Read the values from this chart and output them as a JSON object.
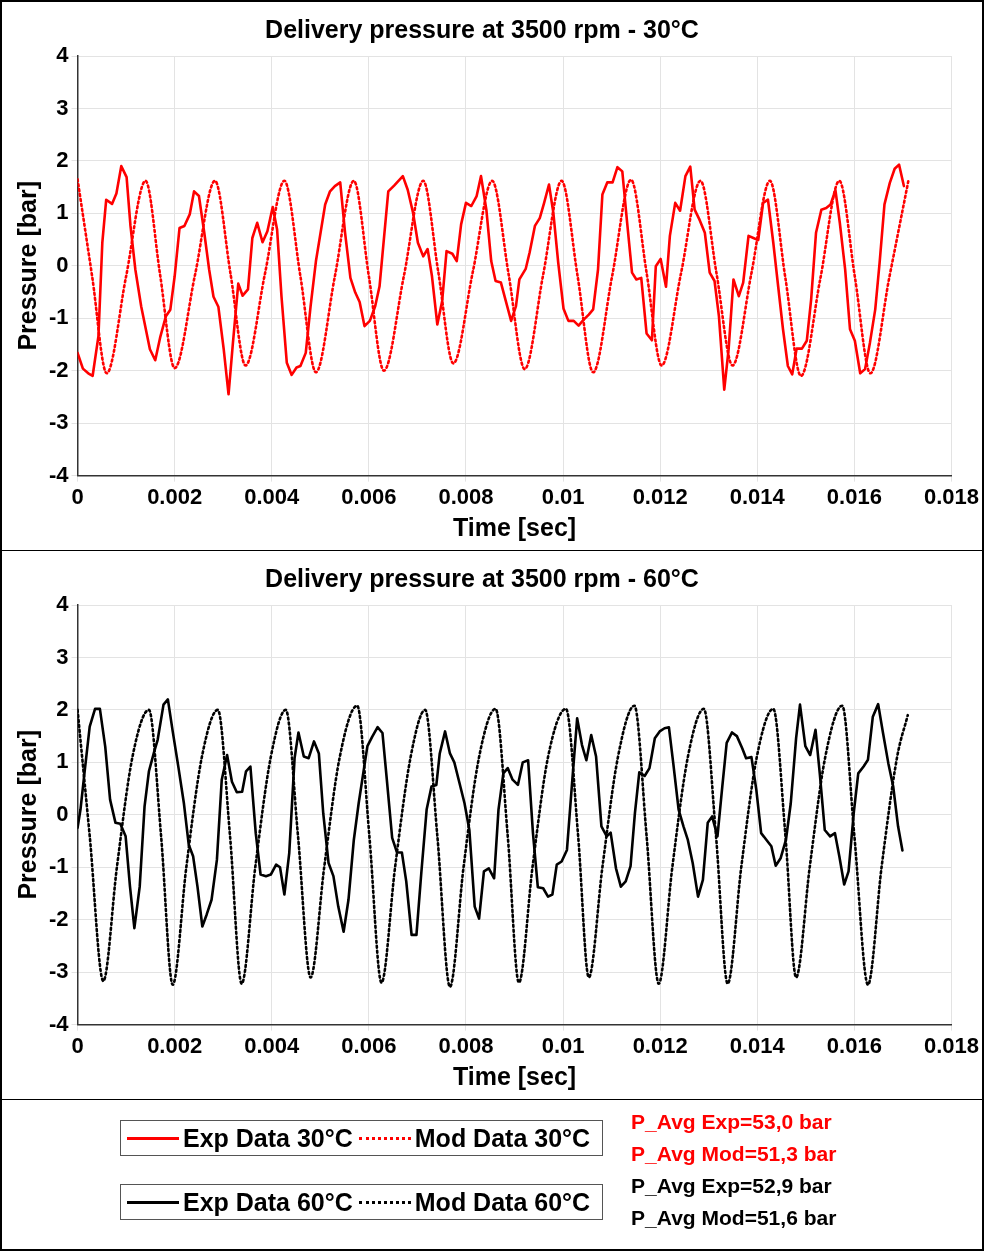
{
  "chart_data": [
    {
      "type": "line",
      "title": "Delivery pressure at 3500 rpm - 30°C",
      "xlabel": "Time [sec]",
      "ylabel": "Pressure [bar]",
      "xlim": [
        0,
        0.018
      ],
      "xticks": [
        0,
        0.002,
        0.004,
        0.006,
        0.008,
        0.01,
        0.012,
        0.014,
        0.016,
        0.018
      ],
      "ylim": [
        -4,
        4
      ],
      "yticks": [
        -4,
        -3,
        -2,
        -1,
        0,
        1,
        2,
        3,
        4
      ],
      "grid": true,
      "legend": "bottom",
      "marker": "none",
      "annotations": [
        "P_Avg Exp=53,0 bar",
        "P_Avg Mod=51,3 bar"
      ],
      "series": [
        {
          "name": "Exp Data 30°C",
          "color": "#ff0000",
          "line_style": "solid",
          "x": [
            0,
            0.00011,
            0.00022,
            0.00031,
            0.00043,
            0.00051,
            0.00059,
            0.00071,
            0.0008,
            0.0009,
            0.00101,
            0.00109,
            0.00119,
            0.00131,
            0.00149,
            0.0016,
            0.0017,
            0.00182,
            0.00191,
            0.002,
            0.0021,
            0.0022,
            0.00231,
            0.0024,
            0.0025,
            0.00261,
            0.00271,
            0.0028,
            0.0029,
            0.00301,
            0.00311,
            0.0032,
            0.00331,
            0.0034,
            0.00351,
            0.0036,
            0.0037,
            0.00381,
            0.00391,
            0.00402,
            0.00411,
            0.0042,
            0.00431,
            0.00441,
            0.00451,
            0.00459,
            0.0047,
            0.0048,
            0.00491,
            0.0051,
            0.0052,
            0.0053,
            0.00541,
            0.00551,
            0.00562,
            0.00572,
            0.00581,
            0.00591,
            0.00602,
            0.00613,
            0.00622,
            0.0064,
            0.00652,
            0.0067,
            0.0068,
            0.00691,
            0.00701,
            0.00712,
            0.00721,
            0.0073,
            0.00741,
            0.00751,
            0.0076,
            0.00772,
            0.00781,
            0.0079,
            0.008,
            0.00811,
            0.00822,
            0.00831,
            0.00842,
            0.00852,
            0.00861,
            0.00872,
            0.00882,
            0.00893,
            0.00903,
            0.0091,
            0.00923,
            0.00931,
            0.00942,
            0.00952,
            0.00961,
            0.00971,
            0.0098,
            0.0099,
            0.01001,
            0.01011,
            0.01022,
            0.01032,
            0.01042,
            0.01053,
            0.01062,
            0.01072,
            0.01081,
            0.01091,
            0.01102,
            0.01112,
            0.01122,
            0.01132,
            0.01142,
            0.01151,
            0.01161,
            0.01172,
            0.01183,
            0.01191,
            0.01201,
            0.01212,
            0.0122,
            0.01231,
            0.01241,
            0.01252,
            0.01262,
            0.01271,
            0.01281,
            0.01292,
            0.01302,
            0.01312,
            0.01321,
            0.01332,
            0.01341,
            0.01351,
            0.01362,
            0.01371,
            0.01382,
            0.01392,
            0.01402,
            0.01412,
            0.01422,
            0.01433,
            0.01443,
            0.01453,
            0.01463,
            0.01472,
            0.01481,
            0.01492,
            0.01502,
            0.01511,
            0.01521,
            0.01532,
            0.01542,
            0.01551,
            0.01561,
            0.0157,
            0.01581,
            0.01591,
            0.01601,
            0.01612,
            0.01622,
            0.01632,
            0.01643,
            0.01652,
            0.01662,
            0.01673,
            0.01683,
            0.01692,
            0.01702
          ],
          "values": [
            -1.66,
            -1.96,
            -2.05,
            -2.1,
            -1.34,
            0.44,
            1.26,
            1.18,
            1.38,
            1.9,
            1.69,
            0.76,
            -0.07,
            -0.77,
            -1.59,
            -1.8,
            -1.37,
            -0.96,
            -0.84,
            -0.2,
            0.72,
            0.76,
            0.98,
            1.42,
            1.33,
            0.63,
            -0.07,
            -0.59,
            -0.78,
            -1.59,
            -2.45,
            -1.47,
            -0.34,
            -0.57,
            -0.45,
            0.53,
            0.82,
            0.45,
            0.66,
            1.12,
            0.69,
            -0.58,
            -1.85,
            -2.08,
            -1.94,
            -1.91,
            -1.66,
            -0.77,
            0.09,
            1.17,
            1.42,
            1.52,
            1.59,
            0.63,
            -0.23,
            -0.51,
            -0.69,
            -1.15,
            -1.05,
            -0.77,
            -0.39,
            1.42,
            1.53,
            1.71,
            1.45,
            1.01,
            0.44,
            0.18,
            0.32,
            -0.2,
            -1.12,
            -0.67,
            0.28,
            0.23,
            0.09,
            0.79,
            1.2,
            1.14,
            1.33,
            1.71,
            1.07,
            0.09,
            -0.29,
            -0.32,
            -0.67,
            -1.05,
            -0.77,
            -0.26,
            -0.06,
            0.25,
            0.76,
            0.91,
            1.2,
            1.55,
            1.01,
            0.06,
            -0.82,
            -1.05,
            -1.05,
            -1.14,
            -1.03,
            -0.93,
            -0.83,
            -0.07,
            1.36,
            1.59,
            1.59,
            1.88,
            1.8,
            0.82,
            -0.13,
            -0.26,
            -0.23,
            -1.29,
            -1.42,
            -0.01,
            0.13,
            -0.4,
            0.57,
            1.2,
            1.05,
            1.71,
            1.89,
            1.07,
            0.88,
            0.63,
            -0.13,
            -0.29,
            -0.96,
            -2.36,
            -1.59,
            -0.26,
            -0.58,
            -0.32,
            0.57,
            0.53,
            0.49,
            1.2,
            1.26,
            0.44,
            -0.39,
            -1.21,
            -1.91,
            -2.07,
            -1.58,
            -1.58,
            -1.43,
            -0.64,
            0.63,
            1.07,
            1.1,
            1.17,
            1.44,
            0.82,
            -0.07,
            -1.21,
            -1.43,
            -2.05,
            -1.97,
            -1.47,
            -0.83,
            0.06,
            1.17,
            1.58,
            1.85,
            1.93,
            1.52
          ]
        },
        {
          "name": "Mod Data 30°C",
          "color": "#ff0000",
          "line_style": "dotted",
          "x": [
            0,
            0.0003,
            0.0006,
            0.001,
            0.0014,
            0.0017,
            0.002,
            0.00242,
            0.00283,
            0.00315,
            0.00346,
            0.00386,
            0.00426,
            0.00459,
            0.00491,
            0.0053,
            0.00569,
            0.006,
            0.00631,
            0.00672,
            0.00712,
            0.00743,
            0.00774,
            0.00814,
            0.00854,
            0.00888,
            0.00921,
            0.00959,
            0.00997,
            0.0103,
            0.01062,
            0.01101,
            0.0114,
            0.01172,
            0.01203,
            0.01243,
            0.01283,
            0.01316,
            0.01349,
            0.01388,
            0.01426,
            0.01458,
            0.0149,
            0.0153,
            0.01569,
            0.01601,
            0.01633,
            0.01672,
            0.01711
          ],
          "values": [
            1.65,
            -0.2,
            -2.05,
            -0.2,
            1.62,
            -0.17,
            -1.95,
            -0.17,
            1.62,
            -0.15,
            -1.9,
            -0.15,
            1.62,
            -0.2,
            -2.03,
            -0.2,
            1.62,
            -0.2,
            -2,
            -0.2,
            1.62,
            -0.12,
            -1.86,
            -0.12,
            1.62,
            -0.17,
            -1.97,
            -0.17,
            1.62,
            -0.2,
            -2.03,
            -0.2,
            1.64,
            -0.13,
            -1.9,
            -0.14,
            1.62,
            -0.14,
            -1.9,
            -0.14,
            1.62,
            -0.24,
            -2.1,
            -0.24,
            1.62,
            -0.21,
            -2.05,
            -0.22,
            1.61
          ]
        }
      ]
    },
    {
      "type": "line",
      "title": "Delivery pressure at 3500 rpm - 60°C",
      "xlabel": "Time [sec]",
      "ylabel": "Pressure [bar]",
      "xlim": [
        0,
        0.018
      ],
      "xticks": [
        0,
        0.002,
        0.004,
        0.006,
        0.008,
        0.01,
        0.012,
        0.014,
        0.016,
        0.018
      ],
      "ylim": [
        -4,
        4
      ],
      "yticks": [
        -4,
        -3,
        -2,
        -1,
        0,
        1,
        2,
        3,
        4
      ],
      "grid": true,
      "legend": "bottom",
      "marker": "none",
      "annotations": [
        "P_Avg Exp=52,9 bar",
        "P_Avg Mod=51,6 bar"
      ],
      "series": [
        {
          "name": "Exp Data 60°C",
          "color": "#000000",
          "line_style": "solid",
          "x": [
            0,
            6e-05,
            0.00015,
            0.00025,
            0.00036,
            0.00046,
            0.00057,
            0.00067,
            0.00078,
            0.00088,
            0.00099,
            0.00108,
            0.00117,
            0.00128,
            0.00138,
            0.00147,
            0.00158,
            0.00165,
            0.00177,
            0.00186,
            0.00196,
            0.00208,
            0.00219,
            0.00229,
            0.00238,
            0.00247,
            0.00257,
            0.00266,
            0.00276,
            0.00287,
            0.00297,
            0.00308,
            0.00318,
            0.00328,
            0.00339,
            0.00347,
            0.00356,
            0.00367,
            0.00377,
            0.00388,
            0.00398,
            0.00409,
            0.00417,
            0.00426,
            0.00436,
            0.00447,
            0.00455,
            0.00466,
            0.00476,
            0.00487,
            0.00497,
            0.00506,
            0.00517,
            0.00527,
            0.00537,
            0.00548,
            0.00558,
            0.00569,
            0.00579,
            0.00597,
            0.00607,
            0.00618,
            0.00628,
            0.00637,
            0.00648,
            0.00658,
            0.00668,
            0.00677,
            0.00688,
            0.00698,
            0.00708,
            0.00719,
            0.00729,
            0.00739,
            0.00746,
            0.00757,
            0.00767,
            0.00776,
            0.00786,
            0.00797,
            0.00807,
            0.00818,
            0.00827,
            0.00837,
            0.00847,
            0.00858,
            0.00867,
            0.00877,
            0.00886,
            0.00896,
            0.00907,
            0.00917,
            0.00928,
            0.00938,
            0.00948,
            0.00959,
            0.00969,
            0.00978,
            0.00987,
            0.00997,
            0.01008,
            0.01018,
            0.01029,
            0.01039,
            0.01048,
            0.01058,
            0.01068,
            0.01079,
            0.0109,
            0.01098,
            0.01109,
            0.01119,
            0.01129,
            0.01139,
            0.01148,
            0.01157,
            0.01168,
            0.01178,
            0.01189,
            0.01199,
            0.01209,
            0.01218,
            0.01227,
            0.01238,
            0.01248,
            0.01257,
            0.01267,
            0.01278,
            0.01288,
            0.01298,
            0.01307,
            0.01318,
            0.01328,
            0.01337,
            0.01348,
            0.01358,
            0.01369,
            0.01377,
            0.01388,
            0.01398,
            0.01408,
            0.01419,
            0.01429,
            0.01438,
            0.01448,
            0.01459,
            0.01469,
            0.0148,
            0.01488,
            0.01499,
            0.01509,
            0.0152,
            0.01529,
            0.01539,
            0.0155,
            0.0156,
            0.01569,
            0.01579,
            0.01588,
            0.01599,
            0.01608,
            0.01619,
            0.01628,
            0.01638,
            0.01649,
            0.01659,
            0.0167,
            0.0168,
            0.0169,
            0.01699
          ],
          "values": [
            -0.25,
            0.1,
            0.86,
            1.68,
            2.02,
            2.02,
            1.3,
            0.29,
            -0.15,
            -0.17,
            -0.41,
            -1.37,
            -2.16,
            -1.37,
            0.16,
            0.83,
            1.21,
            1.43,
            2.1,
            2.2,
            1.59,
            0.89,
            0.22,
            -0.57,
            -0.79,
            -1.37,
            -2.13,
            -1.9,
            -1.62,
            -0.86,
            0.67,
            1.14,
            0.63,
            0.43,
            0.44,
            0.83,
            0.92,
            -0.35,
            -1.14,
            -1.17,
            -1.14,
            -0.95,
            -1,
            -1.52,
            -0.73,
            1.08,
            1.57,
            1.11,
            1.08,
            1.4,
            1.17,
            0.03,
            -0.92,
            -1.17,
            -1.75,
            -2.23,
            -1.62,
            -0.48,
            0.22,
            1.31,
            1.49,
            1.67,
            1.56,
            0.67,
            -0.44,
            -0.72,
            -0.72,
            -1.27,
            -2.29,
            -2.29,
            -1.11,
            0.1,
            0.54,
            0.57,
            1.17,
            1.59,
            1.17,
            1,
            0.63,
            0.22,
            -0.29,
            -1.75,
            -1.98,
            -1.08,
            -1.02,
            -1.21,
            0.1,
            0.79,
            0.89,
            0.67,
            0.57,
            1,
            1.04,
            -0.35,
            -1.38,
            -1.4,
            -1.56,
            -1.52,
            -0.95,
            -0.89,
            -0.67,
            0.54,
            1.84,
            1.33,
            1.04,
            1.52,
            1.11,
            -0.22,
            -0.41,
            -0.34,
            -1.02,
            -1.37,
            -1.27,
            -0.98,
            0.03,
            0.81,
            0.74,
            0.89,
            1.46,
            1.59,
            1.65,
            1.67,
            0.98,
            0.1,
            -0.22,
            -0.48,
            -0.92,
            -1.56,
            -1.24,
            -0.15,
            -0.03,
            -0.41,
            0.54,
            1.37,
            1.57,
            1.5,
            1.27,
            1.08,
            1.1,
            0.48,
            -0.35,
            -0.48,
            -0.6,
            -0.97,
            -0.83,
            -0.48,
            0.22,
            1.46,
            2.1,
            1.31,
            1.14,
            1.62,
            0.76,
            -0.29,
            -0.41,
            -0.35,
            -0.79,
            -1.33,
            -1.08,
            0.06,
            0.79,
            0.92,
            1.05,
            1.87,
            2.11,
            1.56,
            0.98,
            0.54,
            -0.22,
            -0.68
          ]
        },
        {
          "name": "Mod Data 60°C",
          "color": "#000000",
          "line_style": "dotted",
          "x": [
            0,
            0.00025,
            0.00053,
            0.00081,
            0.00113,
            0.00147,
            0.00172,
            0.00196,
            0.00224,
            0.00256,
            0.00289,
            0.00314,
            0.00338,
            0.00366,
            0.00398,
            0.00429,
            0.00454,
            0.0048,
            0.00508,
            0.0054,
            0.00576,
            0.00601,
            0.00626,
            0.00654,
            0.00686,
            0.00716,
            0.00741,
            0.00767,
            0.00795,
            0.00827,
            0.00861,
            0.00886,
            0.00909,
            0.00937,
            0.00969,
            0.01006,
            0.01031,
            0.01053,
            0.01081,
            0.01113,
            0.01147,
            0.01172,
            0.01197,
            0.01225,
            0.01257,
            0.0129,
            0.01315,
            0.01339,
            0.01367,
            0.01399,
            0.01433,
            0.01458,
            0.0148,
            0.01508,
            0.0154,
            0.01575,
            0.016,
            0.01628,
            0.01656,
            0.01688,
            0.0171
          ],
          "values": [
            2,
            -0.4,
            -3.17,
            -1,
            1.1,
            2,
            -0.4,
            -3.24,
            -1,
            1.1,
            2,
            -0.4,
            -3.22,
            -1,
            1.1,
            2,
            -0.4,
            -3.1,
            -1,
            1.1,
            2.08,
            -0.4,
            -3.2,
            -1,
            1.1,
            2,
            -0.4,
            -3.28,
            -1,
            1.1,
            2.02,
            -0.4,
            -3.2,
            -1,
            1.1,
            2.02,
            -0.4,
            -3.1,
            -1,
            1.1,
            2.08,
            -0.4,
            -3.22,
            -1,
            1.1,
            2.02,
            -0.4,
            -3.22,
            -1,
            1.1,
            2.02,
            -0.4,
            -3.1,
            -1,
            1.1,
            2.08,
            -0.4,
            -3.24,
            -1,
            1.1,
            1.9
          ]
        }
      ]
    }
  ]
}
